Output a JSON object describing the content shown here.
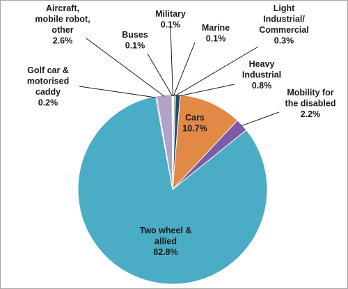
{
  "chart_data": {
    "type": "pie",
    "title": "",
    "slices": [
      {
        "label": [
          "Military"
        ],
        "value": 0.1,
        "value_text": "0.1%",
        "color": "#c8a93a"
      },
      {
        "label": [
          "Marine"
        ],
        "value": 0.1,
        "value_text": "0.1%",
        "color": "#4f81bd"
      },
      {
        "label": [
          "Light",
          "Industrial/",
          "Commercial"
        ],
        "value": 0.3,
        "value_text": "0.3%",
        "color": "#9bbb59"
      },
      {
        "label": [
          "Heavy",
          "Industrial"
        ],
        "value": 0.8,
        "value_text": "0.8%",
        "color": "#1f497d"
      },
      {
        "label": [
          "Cars"
        ],
        "value": 10.7,
        "value_text": "10.7%",
        "color": "#e08a46"
      },
      {
        "label": [
          "Mobility for",
          "the disabled"
        ],
        "value": 2.2,
        "value_text": "2.2%",
        "color": "#7d5ba6"
      },
      {
        "label": [
          "Two wheel &",
          "allied"
        ],
        "value": 82.8,
        "value_text": "82.8%",
        "color": "#4bacc6"
      },
      {
        "label": [
          "Golf car &",
          "motorised",
          "caddy"
        ],
        "value": 0.2,
        "value_text": "0.2%",
        "color": "#c0504d"
      },
      {
        "label": [
          "Aircraft,",
          "mobile robot,",
          "other"
        ],
        "value": 2.6,
        "value_text": "2.6%",
        "color": "#b3a2c7"
      },
      {
        "label": [
          "Buses"
        ],
        "value": 0.1,
        "value_text": "0.1%",
        "color": "#f79646"
      }
    ],
    "legend": "none",
    "start_angle_deg": 0,
    "direction": "clockwise"
  }
}
